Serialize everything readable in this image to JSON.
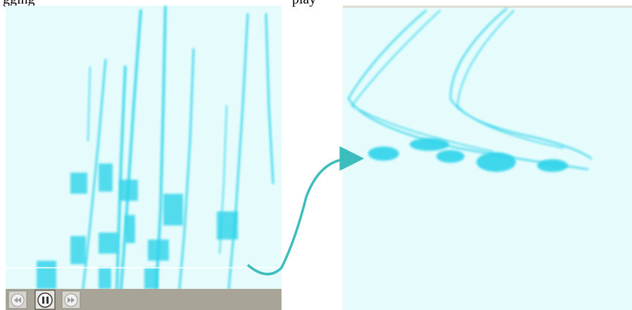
{
  "caption": {
    "left": "gging",
    "right": "play"
  }
}
